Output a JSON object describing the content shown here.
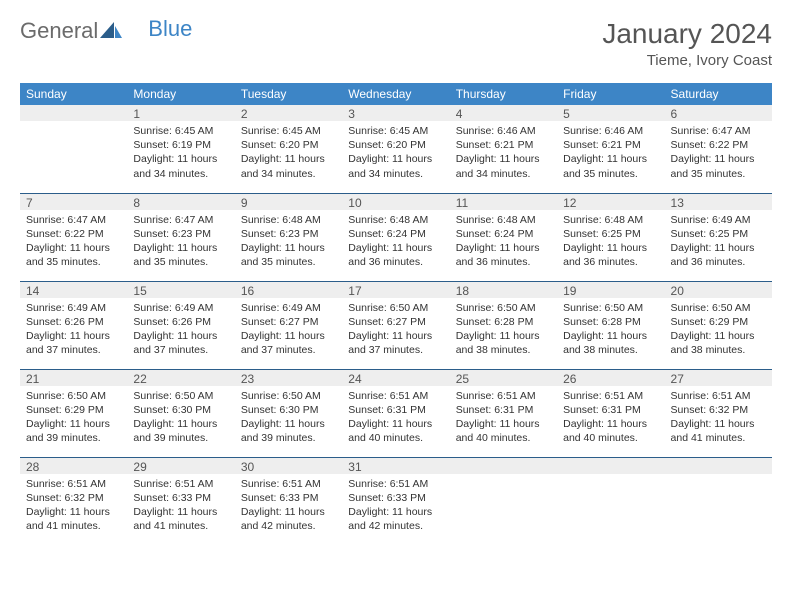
{
  "brand": {
    "part1": "General",
    "part2": "Blue"
  },
  "title": "January 2024",
  "location": "Tieme, Ivory Coast",
  "colors": {
    "header_bg": "#3d85c6",
    "header_text": "#ffffff",
    "daynum_bg": "#eeeeee",
    "rule": "#2b5d8a",
    "text": "#333333"
  },
  "dayHeaders": [
    "Sunday",
    "Monday",
    "Tuesday",
    "Wednesday",
    "Thursday",
    "Friday",
    "Saturday"
  ],
  "weeks": [
    [
      {
        "num": "",
        "sunrise": "",
        "sunset": "",
        "daylight": ""
      },
      {
        "num": "1",
        "sunrise": "Sunrise: 6:45 AM",
        "sunset": "Sunset: 6:19 PM",
        "daylight": "Daylight: 11 hours and 34 minutes."
      },
      {
        "num": "2",
        "sunrise": "Sunrise: 6:45 AM",
        "sunset": "Sunset: 6:20 PM",
        "daylight": "Daylight: 11 hours and 34 minutes."
      },
      {
        "num": "3",
        "sunrise": "Sunrise: 6:45 AM",
        "sunset": "Sunset: 6:20 PM",
        "daylight": "Daylight: 11 hours and 34 minutes."
      },
      {
        "num": "4",
        "sunrise": "Sunrise: 6:46 AM",
        "sunset": "Sunset: 6:21 PM",
        "daylight": "Daylight: 11 hours and 34 minutes."
      },
      {
        "num": "5",
        "sunrise": "Sunrise: 6:46 AM",
        "sunset": "Sunset: 6:21 PM",
        "daylight": "Daylight: 11 hours and 35 minutes."
      },
      {
        "num": "6",
        "sunrise": "Sunrise: 6:47 AM",
        "sunset": "Sunset: 6:22 PM",
        "daylight": "Daylight: 11 hours and 35 minutes."
      }
    ],
    [
      {
        "num": "7",
        "sunrise": "Sunrise: 6:47 AM",
        "sunset": "Sunset: 6:22 PM",
        "daylight": "Daylight: 11 hours and 35 minutes."
      },
      {
        "num": "8",
        "sunrise": "Sunrise: 6:47 AM",
        "sunset": "Sunset: 6:23 PM",
        "daylight": "Daylight: 11 hours and 35 minutes."
      },
      {
        "num": "9",
        "sunrise": "Sunrise: 6:48 AM",
        "sunset": "Sunset: 6:23 PM",
        "daylight": "Daylight: 11 hours and 35 minutes."
      },
      {
        "num": "10",
        "sunrise": "Sunrise: 6:48 AM",
        "sunset": "Sunset: 6:24 PM",
        "daylight": "Daylight: 11 hours and 36 minutes."
      },
      {
        "num": "11",
        "sunrise": "Sunrise: 6:48 AM",
        "sunset": "Sunset: 6:24 PM",
        "daylight": "Daylight: 11 hours and 36 minutes."
      },
      {
        "num": "12",
        "sunrise": "Sunrise: 6:48 AM",
        "sunset": "Sunset: 6:25 PM",
        "daylight": "Daylight: 11 hours and 36 minutes."
      },
      {
        "num": "13",
        "sunrise": "Sunrise: 6:49 AM",
        "sunset": "Sunset: 6:25 PM",
        "daylight": "Daylight: 11 hours and 36 minutes."
      }
    ],
    [
      {
        "num": "14",
        "sunrise": "Sunrise: 6:49 AM",
        "sunset": "Sunset: 6:26 PM",
        "daylight": "Daylight: 11 hours and 37 minutes."
      },
      {
        "num": "15",
        "sunrise": "Sunrise: 6:49 AM",
        "sunset": "Sunset: 6:26 PM",
        "daylight": "Daylight: 11 hours and 37 minutes."
      },
      {
        "num": "16",
        "sunrise": "Sunrise: 6:49 AM",
        "sunset": "Sunset: 6:27 PM",
        "daylight": "Daylight: 11 hours and 37 minutes."
      },
      {
        "num": "17",
        "sunrise": "Sunrise: 6:50 AM",
        "sunset": "Sunset: 6:27 PM",
        "daylight": "Daylight: 11 hours and 37 minutes."
      },
      {
        "num": "18",
        "sunrise": "Sunrise: 6:50 AM",
        "sunset": "Sunset: 6:28 PM",
        "daylight": "Daylight: 11 hours and 38 minutes."
      },
      {
        "num": "19",
        "sunrise": "Sunrise: 6:50 AM",
        "sunset": "Sunset: 6:28 PM",
        "daylight": "Daylight: 11 hours and 38 minutes."
      },
      {
        "num": "20",
        "sunrise": "Sunrise: 6:50 AM",
        "sunset": "Sunset: 6:29 PM",
        "daylight": "Daylight: 11 hours and 38 minutes."
      }
    ],
    [
      {
        "num": "21",
        "sunrise": "Sunrise: 6:50 AM",
        "sunset": "Sunset: 6:29 PM",
        "daylight": "Daylight: 11 hours and 39 minutes."
      },
      {
        "num": "22",
        "sunrise": "Sunrise: 6:50 AM",
        "sunset": "Sunset: 6:30 PM",
        "daylight": "Daylight: 11 hours and 39 minutes."
      },
      {
        "num": "23",
        "sunrise": "Sunrise: 6:50 AM",
        "sunset": "Sunset: 6:30 PM",
        "daylight": "Daylight: 11 hours and 39 minutes."
      },
      {
        "num": "24",
        "sunrise": "Sunrise: 6:51 AM",
        "sunset": "Sunset: 6:31 PM",
        "daylight": "Daylight: 11 hours and 40 minutes."
      },
      {
        "num": "25",
        "sunrise": "Sunrise: 6:51 AM",
        "sunset": "Sunset: 6:31 PM",
        "daylight": "Daylight: 11 hours and 40 minutes."
      },
      {
        "num": "26",
        "sunrise": "Sunrise: 6:51 AM",
        "sunset": "Sunset: 6:31 PM",
        "daylight": "Daylight: 11 hours and 40 minutes."
      },
      {
        "num": "27",
        "sunrise": "Sunrise: 6:51 AM",
        "sunset": "Sunset: 6:32 PM",
        "daylight": "Daylight: 11 hours and 41 minutes."
      }
    ],
    [
      {
        "num": "28",
        "sunrise": "Sunrise: 6:51 AM",
        "sunset": "Sunset: 6:32 PM",
        "daylight": "Daylight: 11 hours and 41 minutes."
      },
      {
        "num": "29",
        "sunrise": "Sunrise: 6:51 AM",
        "sunset": "Sunset: 6:33 PM",
        "daylight": "Daylight: 11 hours and 41 minutes."
      },
      {
        "num": "30",
        "sunrise": "Sunrise: 6:51 AM",
        "sunset": "Sunset: 6:33 PM",
        "daylight": "Daylight: 11 hours and 42 minutes."
      },
      {
        "num": "31",
        "sunrise": "Sunrise: 6:51 AM",
        "sunset": "Sunset: 6:33 PM",
        "daylight": "Daylight: 11 hours and 42 minutes."
      },
      {
        "num": "",
        "sunrise": "",
        "sunset": "",
        "daylight": ""
      },
      {
        "num": "",
        "sunrise": "",
        "sunset": "",
        "daylight": ""
      },
      {
        "num": "",
        "sunrise": "",
        "sunset": "",
        "daylight": ""
      }
    ]
  ]
}
